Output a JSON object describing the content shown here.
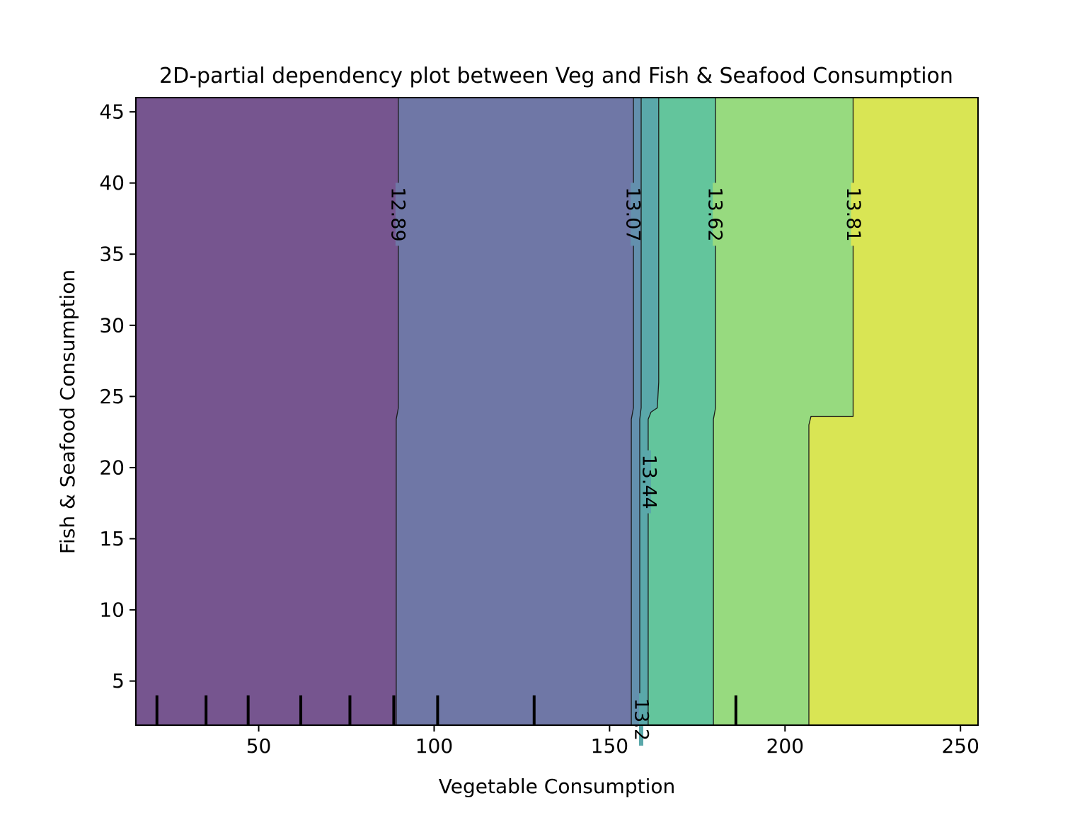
{
  "chart_data": {
    "type": "contour",
    "title": "2D-partial dependency plot between Veg and Fish & Seafood Consumption",
    "xlabel": "Vegetable Consumption",
    "ylabel": "Fish & Seafood Consumption",
    "xlim": [
      15,
      255
    ],
    "ylim": [
      1.9,
      46
    ],
    "xticks": [
      50,
      100,
      150,
      200,
      250
    ],
    "yticks": [
      5,
      10,
      15,
      20,
      25,
      30,
      35,
      40,
      45
    ],
    "grid": false,
    "colormap": "viridis",
    "contour_levels": [
      "12.89",
      "13.07",
      "13.2",
      "13.44",
      "13.62",
      "13.81"
    ],
    "contour_lines": [
      {
        "label": "12.89",
        "points": [
          [
            89.2,
            1.9
          ],
          [
            89.2,
            23.4
          ],
          [
            89.8,
            24.2
          ],
          [
            89.8,
            46
          ]
        ],
        "label_at": [
          89.6,
          37.8
        ]
      },
      {
        "label": "13.07",
        "points": [
          [
            156.2,
            1.9
          ],
          [
            156.2,
            23.4
          ],
          [
            156.8,
            24.2
          ],
          [
            156.8,
            46
          ]
        ],
        "label_at": [
          156.6,
          37.8
        ]
      },
      {
        "label": "13.2",
        "points": [
          [
            158.6,
            1.9
          ],
          [
            158.6,
            23.4
          ],
          [
            159.0,
            24.2
          ],
          [
            159.0,
            46
          ]
        ],
        "label_at": [
          159.0,
          2.3
        ]
      },
      {
        "label": "13.44",
        "points": [
          [
            161.0,
            1.9
          ],
          [
            161.0,
            23.4
          ],
          [
            161.8,
            23.9
          ],
          [
            163.6,
            24.2
          ],
          [
            164.0,
            26.0
          ],
          [
            164.0,
            46
          ]
        ],
        "label_at": [
          161.2,
          19.0
        ]
      },
      {
        "label": "13.62",
        "points": [
          [
            179.6,
            1.9
          ],
          [
            179.6,
            23.4
          ],
          [
            180.2,
            24.2
          ],
          [
            180.2,
            46
          ]
        ],
        "label_at": [
          180.0,
          37.8
        ]
      },
      {
        "label": "13.81",
        "points": [
          [
            206.8,
            1.9
          ],
          [
            206.8,
            23.0
          ],
          [
            207.4,
            23.6
          ],
          [
            219.4,
            23.6
          ],
          [
            219.4,
            46
          ]
        ],
        "label_at": [
          219.4,
          37.8
        ]
      }
    ],
    "regions": [
      {
        "color": "#76558f",
        "polygon": [
          [
            15,
            1.9
          ],
          [
            89.2,
            1.9
          ],
          [
            89.2,
            23.4
          ],
          [
            89.8,
            24.2
          ],
          [
            89.8,
            46
          ],
          [
            15,
            46
          ]
        ]
      },
      {
        "color": "#6f77a6",
        "polygon": [
          [
            89.2,
            1.9
          ],
          [
            156.2,
            1.9
          ],
          [
            156.2,
            23.4
          ],
          [
            156.8,
            24.2
          ],
          [
            156.8,
            46
          ],
          [
            89.8,
            46
          ],
          [
            89.8,
            24.2
          ],
          [
            89.2,
            23.4
          ]
        ]
      },
      {
        "color": "#6390ad",
        "polygon": [
          [
            156.2,
            1.9
          ],
          [
            158.6,
            1.9
          ],
          [
            158.6,
            23.4
          ],
          [
            159.0,
            24.2
          ],
          [
            159.0,
            46
          ],
          [
            156.8,
            46
          ],
          [
            156.8,
            24.2
          ],
          [
            156.2,
            23.4
          ]
        ]
      },
      {
        "color": "#5aa8aa",
        "polygon": [
          [
            158.6,
            1.9
          ],
          [
            161.0,
            1.9
          ],
          [
            161.0,
            23.4
          ],
          [
            161.8,
            23.9
          ],
          [
            163.6,
            24.2
          ],
          [
            164.0,
            26.0
          ],
          [
            164.0,
            46
          ],
          [
            159.0,
            46
          ],
          [
            159.0,
            24.2
          ],
          [
            158.6,
            23.4
          ]
        ]
      },
      {
        "color": "#63c59c",
        "polygon": [
          [
            161.0,
            1.9
          ],
          [
            179.6,
            1.9
          ],
          [
            179.6,
            23.4
          ],
          [
            180.2,
            24.2
          ],
          [
            180.2,
            46
          ],
          [
            164.0,
            46
          ],
          [
            164.0,
            26.0
          ],
          [
            163.6,
            24.2
          ],
          [
            161.8,
            23.9
          ],
          [
            161.0,
            23.4
          ]
        ]
      },
      {
        "color": "#97da7f",
        "polygon": [
          [
            179.6,
            1.9
          ],
          [
            206.8,
            1.9
          ],
          [
            206.8,
            23.0
          ],
          [
            207.4,
            23.6
          ],
          [
            219.4,
            23.6
          ],
          [
            219.4,
            46
          ],
          [
            180.2,
            46
          ],
          [
            180.2,
            24.2
          ],
          [
            179.6,
            23.4
          ]
        ]
      },
      {
        "color": "#d9e554",
        "polygon": [
          [
            206.8,
            1.9
          ],
          [
            255,
            1.9
          ],
          [
            255,
            46
          ],
          [
            219.4,
            46
          ],
          [
            219.4,
            23.6
          ],
          [
            207.4,
            23.6
          ],
          [
            206.8,
            23.0
          ]
        ]
      }
    ],
    "rug_x": [
      21,
      35,
      47,
      62,
      76,
      88.5,
      101,
      128.5,
      186
    ]
  }
}
